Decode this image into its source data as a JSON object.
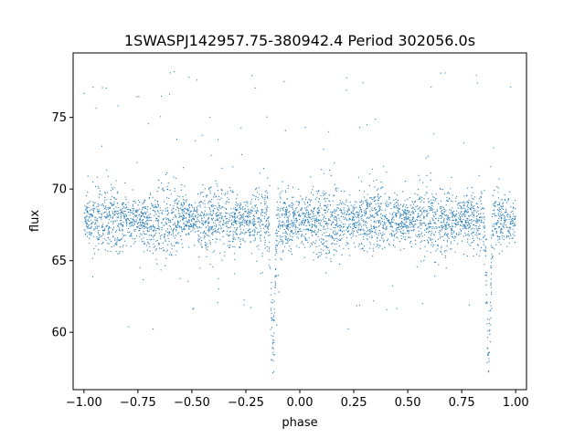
{
  "chart_data": {
    "type": "scatter",
    "title": "1SWASPJ142957.75-380942.4 Period 302056.0s",
    "xlabel": "phase",
    "ylabel": "flux",
    "xlim": [
      -1.05,
      1.05
    ],
    "ylim": [
      56.0,
      79.5
    ],
    "x_ticks": [
      -1.0,
      -0.75,
      -0.5,
      -0.25,
      0.0,
      0.25,
      0.5,
      0.75,
      1.0
    ],
    "x_tick_labels": [
      "−1.00",
      "−0.75",
      "−0.50",
      "−0.25",
      "0.00",
      "0.25",
      "0.50",
      "0.75",
      "1.00"
    ],
    "y_ticks": [
      60,
      65,
      70,
      75
    ],
    "y_tick_labels": [
      "60",
      "65",
      "70",
      "75"
    ],
    "grid": false,
    "legend": "none",
    "marker_color": "#1f77b4",
    "series": [
      {
        "baseline_flux": 67.8,
        "eclipses": [
          {
            "phase": -0.125,
            "min_flux": 57.2
          },
          {
            "phase": 0.875,
            "min_flux": 57.2
          }
        ],
        "phase_range": [
          -1.0,
          1.0
        ],
        "scatter_band": [
          65.0,
          71.0
        ],
        "flux_range": [
          57.0,
          78.2
        ]
      }
    ]
  }
}
